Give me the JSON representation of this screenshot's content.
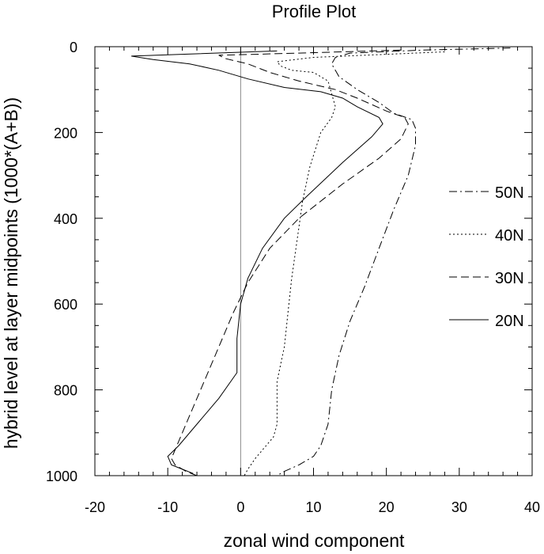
{
  "chart_data": {
    "type": "line",
    "title": "Profile Plot",
    "xlabel": "zonal wind component",
    "ylabel": "hybrid level at layer midpoints (1000*(A+B))",
    "xlim": [
      -20,
      40
    ],
    "ylim": [
      1000,
      0
    ],
    "y_axis_inverted": true,
    "xticks": [
      -20,
      -10,
      0,
      10,
      20,
      30,
      40
    ],
    "yticks": [
      0,
      200,
      400,
      600,
      800,
      1000
    ],
    "grid": false,
    "zero_line": true,
    "legend_position": "right",
    "series": [
      {
        "name": "50N",
        "dash": "dashdot",
        "points": [
          [
            37,
            3
          ],
          [
            25,
            8
          ],
          [
            15,
            15
          ],
          [
            13,
            25
          ],
          [
            12.5,
            40
          ],
          [
            13.5,
            70
          ],
          [
            16,
            100
          ],
          [
            19,
            130
          ],
          [
            21,
            155
          ],
          [
            23.5,
            170
          ],
          [
            24,
            190
          ],
          [
            24,
            230
          ],
          [
            23,
            300
          ],
          [
            21,
            380
          ],
          [
            19,
            470
          ],
          [
            17,
            560
          ],
          [
            15,
            640
          ],
          [
            13.5,
            720
          ],
          [
            12.5,
            800
          ],
          [
            12,
            880
          ],
          [
            11,
            930
          ],
          [
            10,
            955
          ],
          [
            8,
            975
          ],
          [
            6,
            990
          ],
          [
            5,
            1000
          ]
        ]
      },
      {
        "name": "40N",
        "dash": "dot",
        "points": [
          [
            28,
            12
          ],
          [
            10,
            25
          ],
          [
            5,
            35
          ],
          [
            5.5,
            45
          ],
          [
            7,
            55
          ],
          [
            10,
            60
          ],
          [
            12,
            80
          ],
          [
            12.5,
            110
          ],
          [
            13,
            140
          ],
          [
            12.5,
            165
          ],
          [
            11,
            200
          ],
          [
            9.5,
            280
          ],
          [
            8.5,
            360
          ],
          [
            8,
            420
          ],
          [
            7.5,
            480
          ],
          [
            7,
            540
          ],
          [
            6.5,
            620
          ],
          [
            6,
            700
          ],
          [
            5,
            780
          ],
          [
            5,
            840
          ],
          [
            5,
            880
          ],
          [
            4.5,
            910
          ],
          [
            3,
            940
          ],
          [
            2,
            960
          ],
          [
            1,
            985
          ],
          [
            0.5,
            1000
          ]
        ]
      },
      {
        "name": "30N",
        "dash": "dash",
        "points": [
          [
            22,
            8
          ],
          [
            8,
            15
          ],
          [
            -3,
            20
          ],
          [
            -2,
            28
          ],
          [
            1,
            40
          ],
          [
            4,
            60
          ],
          [
            8,
            80
          ],
          [
            13,
            100
          ],
          [
            16,
            120
          ],
          [
            20,
            150
          ],
          [
            22.5,
            165
          ],
          [
            23,
            180
          ],
          [
            22,
            215
          ],
          [
            19,
            260
          ],
          [
            14,
            320
          ],
          [
            8,
            400
          ],
          [
            4,
            470
          ],
          [
            1,
            550
          ],
          [
            -1,
            620
          ],
          [
            -3,
            700
          ],
          [
            -5,
            780
          ],
          [
            -7,
            860
          ],
          [
            -9,
            940
          ],
          [
            -9.5,
            960
          ],
          [
            -9,
            975
          ],
          [
            -7.5,
            990
          ],
          [
            -6,
            1000
          ]
        ]
      },
      {
        "name": "20N",
        "dash": "solid",
        "points": [
          [
            5,
            10
          ],
          [
            -15,
            22
          ],
          [
            -12,
            30
          ],
          [
            -7,
            40
          ],
          [
            -3,
            55
          ],
          [
            1,
            75
          ],
          [
            6,
            95
          ],
          [
            11,
            105
          ],
          [
            14,
            120
          ],
          [
            16,
            140
          ],
          [
            19,
            165
          ],
          [
            19.5,
            180
          ],
          [
            18,
            210
          ],
          [
            14,
            270
          ],
          [
            9,
            350
          ],
          [
            6,
            400
          ],
          [
            3,
            470
          ],
          [
            1,
            540
          ],
          [
            0,
            600
          ],
          [
            -0.5,
            680
          ],
          [
            -0.5,
            760
          ],
          [
            -3,
            820
          ],
          [
            -6,
            880
          ],
          [
            -8.5,
            930
          ],
          [
            -10,
            955
          ],
          [
            -9.5,
            975
          ],
          [
            -8,
            985
          ],
          [
            -6.5,
            995
          ]
        ]
      }
    ]
  }
}
